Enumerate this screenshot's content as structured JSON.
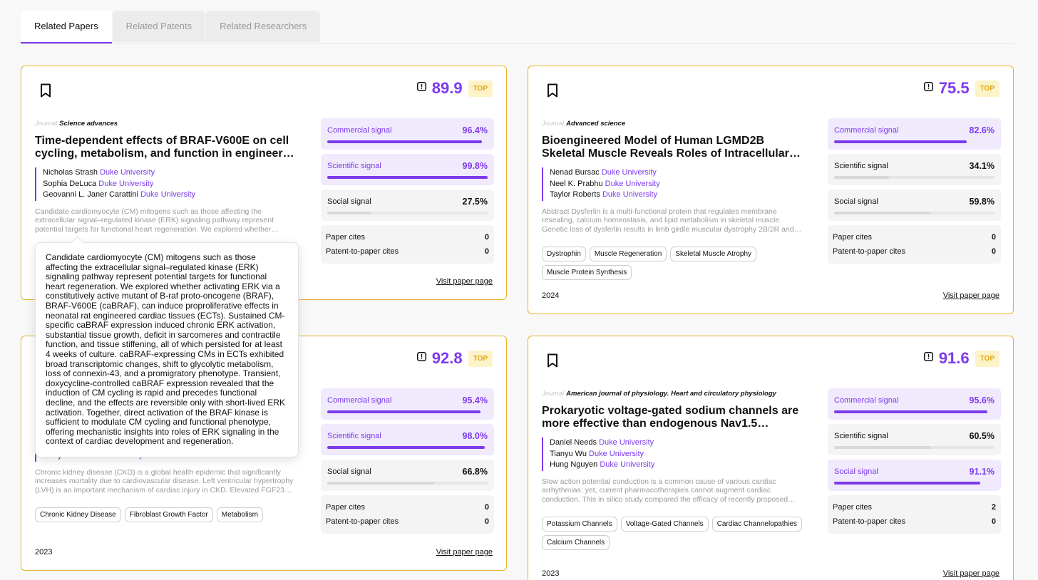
{
  "tabs": [
    "Related Papers",
    "Related Patents",
    "Related Researchers"
  ],
  "active_tab": 0,
  "journal_label": "Journal",
  "badge": "TOP",
  "link": "Visit paper page",
  "cites_labels": [
    "Paper cites",
    "Patent-to-paper cites"
  ],
  "signal_names": [
    "Commercial signal",
    "Scientific signal",
    "Social signal"
  ],
  "cards": [
    {
      "score": "89.9",
      "journal": "Science advances",
      "title": "Time-dependent effects of BRAF-V600E on cell cycling, metabolism, and function in engineered neonatal rat cardiac tissues",
      "authors": [
        {
          "name": "Nicholas Strash",
          "affiliation": "Duke University"
        },
        {
          "name": "Sophia DeLuca",
          "affiliation": "Duke University"
        },
        {
          "name": "Geovanni L. Janer Carattini",
          "affiliation": "Duke University"
        }
      ],
      "abstract": "Candidate cardiomyocyte (CM) mitogens such as those affecting the extracellular signal–regulated kinase (ERK) signaling pathway represent potential targets for functional heart regeneration. We explored whether activating ERK via a constitutively active mutant of B-raf proto-oncogene (BRAF), BRAF-V600E (caBRAF), can induce proproliferative effects in neonatal rat engineered cardiac tissues (ECTs). Sustained CM-specific caBRAF expression induced chronic ERK activation, substantial tissue growth, deficit in sarcomeres and contractile function, and tissue stiffening, all of which persisted for at least 4 weeks of culture. caBRAF-expressing CMs in ECTs exhibited broad transcriptomic changes, shift to glycolytic metabolism, loss of connexin-43, and a promigratory phenotype. Transient, doxycycline-controlled caBRAF expression revealed that the induction of CM cycling is rapid and precedes functional decline, and the effects are reversible only with short-lived ERK activation. Together, direct activation of the BRAF kinase is sufficient to modulate CM cycling and functional phenotype, offering mechanistic insights into roles of ERK signaling in the context of cardiac development and regeneration.",
      "signals": [
        {
          "value": 96.4,
          "label": "96.4%",
          "highlight": true
        },
        {
          "value": 99.8,
          "label": "99.8%",
          "highlight": true
        },
        {
          "value": 27.5,
          "label": "27.5%",
          "highlight": false
        }
      ],
      "cites": [
        0,
        0
      ],
      "tags": []
    },
    {
      "score": "75.5",
      "journal": "Advanced science",
      "title": "Bioengineered Model of Human LGMD2B Skeletal Muscle Reveals Roles of Intracellular Calcium Overload",
      "authors": [
        {
          "name": "Nenad Bursac",
          "affiliation": "Duke University"
        },
        {
          "name": "Neel K. Prabhu",
          "affiliation": "Duke University"
        },
        {
          "name": "Taylor Roberts",
          "affiliation": "Duke University"
        }
      ],
      "abstract": "Abstract Dysferlin is a multi-functional protein that regulates membrane resealing, calcium homeostasis, and lipid metabolism in skeletal muscle. Genetic loss of dysferlin results in limb girdle muscular dystrophy 2B/2R and Miyoshi myopathy.",
      "signals": [
        {
          "value": 82.6,
          "label": "82.6%",
          "highlight": true
        },
        {
          "value": 34.1,
          "label": "34.1%",
          "highlight": false
        },
        {
          "value": 59.8,
          "label": "59.8%",
          "highlight": false
        }
      ],
      "cites": [
        0,
        0
      ],
      "tags": [
        "Dystrophin",
        "Muscle Regeneration",
        "Skeletal Muscle Atrophy",
        "Muscle Protein Synthesis"
      ],
      "year": "2024"
    },
    {
      "score": "92.8",
      "authors": [
        {
          "name": "Emily Banks",
          "affiliation": "Duke University"
        }
      ],
      "abstract": "Chronic kidney disease (CKD) is a global health epidemic that significantly increases mortality due to cardiovascular disease. Left ventricular hypertrophy (LVH) is an important mechanism of cardiac injury in CKD. Elevated FGF23 contributes to LVH.",
      "signals": [
        {
          "value": 95.4,
          "label": "95.4%",
          "highlight": true
        },
        {
          "value": 98.0,
          "label": "98.0%",
          "highlight": true
        },
        {
          "value": 66.8,
          "label": "66.8%",
          "highlight": false
        }
      ],
      "cites": [
        0,
        0
      ],
      "tags": [
        "Chronic Kidney Disease",
        "Fibroblast Growth Factor",
        "Metabolism"
      ],
      "year": "2023"
    },
    {
      "score": "91.6",
      "journal": "American journal of physiology. Heart and circulatory physiology",
      "title": "Prokaryotic voltage-gated sodium channels are more effective than endogenous Nav1.5 channels in rescuing cardiac action potential conduction",
      "authors": [
        {
          "name": "Daniel Needs",
          "affiliation": "Duke University"
        },
        {
          "name": "Tianyu Wu",
          "affiliation": "Duke University"
        },
        {
          "name": "Hung Nguyen",
          "affiliation": "Duke University"
        }
      ],
      "abstract": "Slow action potential conduction is a common cause of various cardiac arrhythmias; yet, current pharmacotherapies cannot augment cardiac conduction. This in silico study compared the efficacy of recently proposed gene therapies.",
      "signals": [
        {
          "value": 95.6,
          "label": "95.6%",
          "highlight": true
        },
        {
          "value": 60.5,
          "label": "60.5%",
          "highlight": false
        },
        {
          "value": 91.1,
          "label": "91.1%",
          "highlight": true
        }
      ],
      "cites": [
        2,
        0
      ],
      "tags": [
        "Potassium Channels",
        "Voltage-Gated Channels",
        "Cardiac Channelopathies",
        "Calcium Channels"
      ],
      "year": "2023"
    }
  ],
  "tooltip_card": 0
}
